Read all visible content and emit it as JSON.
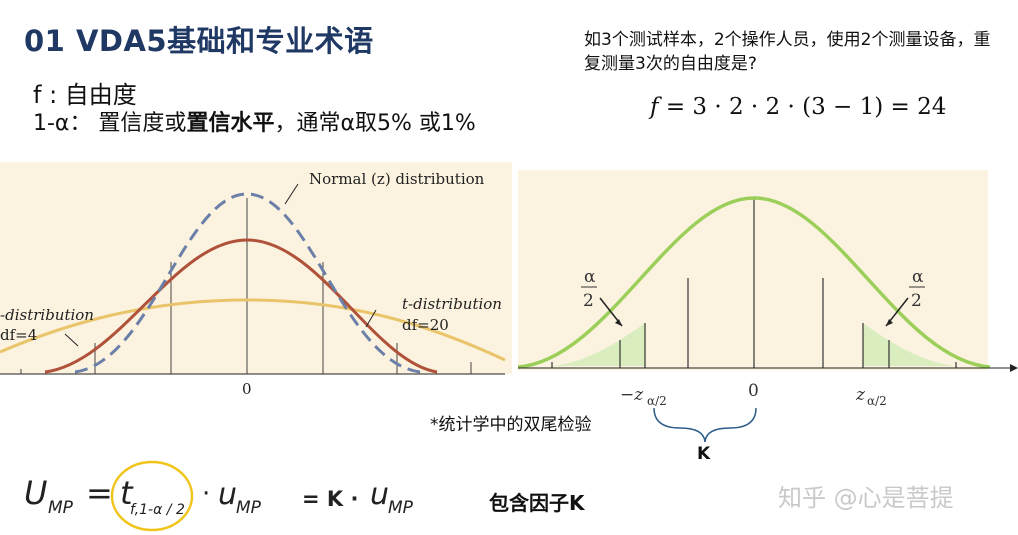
{
  "title": "01 VDA5基础和专业术语",
  "definitions": {
    "f_line": "f : 自由度",
    "alpha_prefix": "1-α：  置信度或",
    "alpha_bold": "置信水平",
    "alpha_suffix": "，通常α取5% 或1%"
  },
  "question": "如3个测试样本，2个操作人员，使用2个测量设备，重复测量3次的自由度是?",
  "dof_equation": {
    "lhs": "f",
    "rhs": " = 3 · 2 · 2 · (3 − 1) = 24"
  },
  "left_chart": {
    "label_normal": "Normal (z) distribution",
    "label_t4_line1": "t-distribution",
    "label_t4_line2": "df=4",
    "label_t20_line1": "t-distribution",
    "label_t20_line2": "df=20",
    "tick_zero": "0"
  },
  "right_chart": {
    "alpha_num": "α",
    "alpha_den": "2",
    "tick_neg": "−z",
    "tick_neg_sub": "α/2",
    "tick_zero": "0",
    "tick_pos": "z",
    "tick_pos_sub": "α/2"
  },
  "note": "*统计学中的双尾检验",
  "k_label": "K",
  "formula": {
    "U": "U",
    "U_sub": "MP",
    "eq": "=",
    "t": "t",
    "t_sub": "f,1-α / 2",
    "dot": "·",
    "u": "u",
    "u_sub": "MP",
    "k_part": "= K  ·",
    "u2": "u",
    "u2_sub": "MP"
  },
  "factor_label": "包含因子K",
  "watermark": "知乎 @心是菩提",
  "colors": {
    "title": "#1f3864",
    "panel_bg": "#fbf3df",
    "normal_dash": "#6b7fa8",
    "t20": "#b0513a",
    "t4": "#e9c46a",
    "green_curve": "#9ccf5a",
    "green_fill": "#d9edbe",
    "circle": "#f0c419"
  }
}
